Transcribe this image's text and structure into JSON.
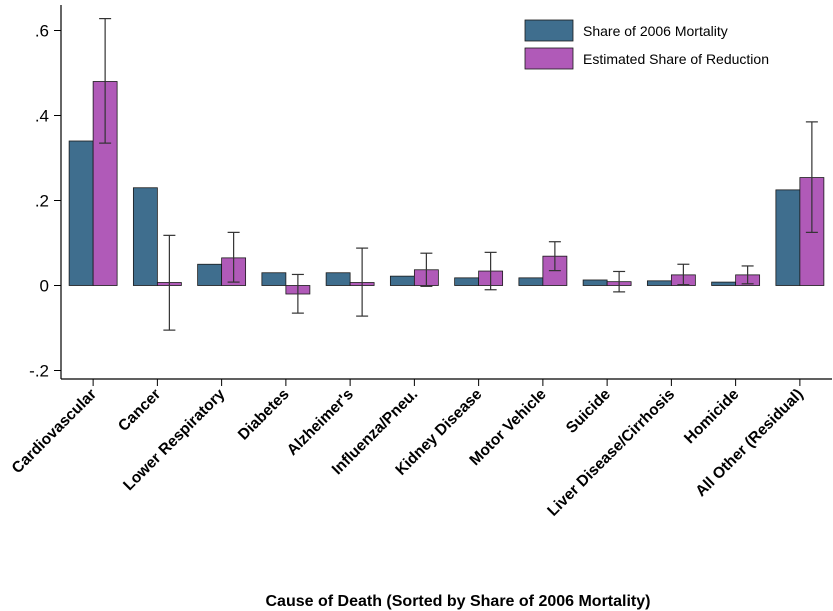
{
  "chart_data": {
    "type": "bar",
    "xlabel": "Cause of Death (Sorted by Share of 2006 Mortality)",
    "ylabel": "",
    "ylim": [
      -0.22,
      0.66
    ],
    "yticks": [
      -0.2,
      0,
      0.2,
      0.4,
      0.6
    ],
    "ytick_labels": [
      "-.2",
      "0",
      ".2",
      ".4",
      ".6"
    ],
    "grid": false,
    "legend_position": "top-right",
    "categories": [
      "Cardiovascular",
      "Cancer",
      "Lower Respiratory",
      "Diabetes",
      "Alzheimer's",
      "Influenza/Pneu.",
      "Kidney Disease",
      "Motor Vehicle",
      "Suicide",
      "Liver Disease/Cirrhosis",
      "Homicide",
      "All Other (Residual)"
    ],
    "series": [
      {
        "name": "Share of 2006 Mortality",
        "color": "#3f6e8e",
        "values": [
          0.34,
          0.23,
          0.05,
          0.03,
          0.03,
          0.022,
          0.018,
          0.018,
          0.013,
          0.011,
          0.008,
          0.225
        ]
      },
      {
        "name": "Estimated Share of Reduction",
        "color": "#b05ab8",
        "values": [
          0.48,
          0.007,
          0.065,
          -0.02,
          0.007,
          0.037,
          0.034,
          0.069,
          0.009,
          0.025,
          0.025,
          0.254
        ],
        "ci_low": [
          0.335,
          -0.105,
          0.008,
          -0.065,
          -0.072,
          -0.002,
          -0.01,
          0.035,
          -0.015,
          0.002,
          0.004,
          0.125
        ],
        "ci_high": [
          0.628,
          0.118,
          0.125,
          0.026,
          0.088,
          0.076,
          0.078,
          0.103,
          0.033,
          0.05,
          0.046,
          0.385
        ]
      }
    ]
  }
}
